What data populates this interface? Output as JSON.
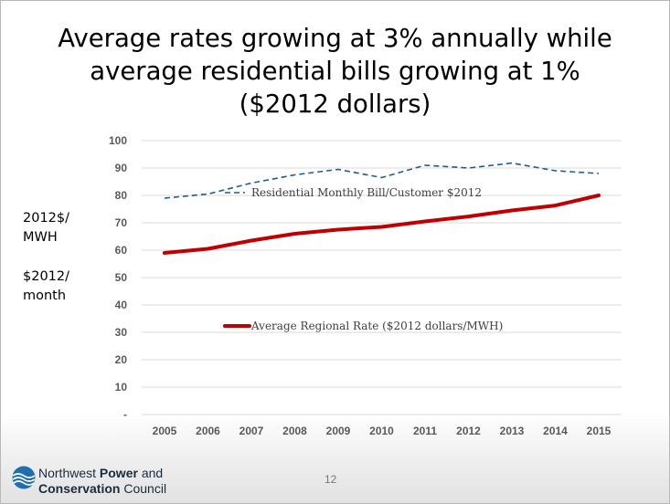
{
  "slide": {
    "title_lines": [
      "Average rates growing at 3% annually while",
      "average residential bills growing at 1%",
      "($2012 dollars)"
    ],
    "left_axis_unit_lines": [
      "2012$/",
      "MWH"
    ],
    "right_axis_unit_lines": [
      "$2012/",
      "month"
    ],
    "page_number": "12"
  },
  "footer": {
    "org_line1_prefix": "Northwest ",
    "org_line1_bold": "Power",
    "org_line1_suffix": " and",
    "org_line2_bold": "Conservation",
    "org_line2_suffix": " Council",
    "logo_icon": "wave-globe-icon"
  },
  "chart_data": {
    "type": "line",
    "x": [
      "2005",
      "2006",
      "2007",
      "2008",
      "2009",
      "2010",
      "2011",
      "2012",
      "2013",
      "2014",
      "2015"
    ],
    "y_ticks": [
      "-",
      "10",
      "20",
      "30",
      "40",
      "50",
      "60",
      "70",
      "80",
      "90",
      "100"
    ],
    "ylim": [
      0,
      100
    ],
    "grid": true,
    "series": [
      {
        "name": "Residential Monthly Bill/Customer $2012",
        "style": "dashed",
        "color": "#1f5c8b",
        "values": [
          79,
          80.5,
          84.5,
          87.5,
          89.5,
          86.5,
          91,
          90,
          91.8,
          89,
          88
        ]
      },
      {
        "name": "Average Regional Rate ($2012 dollars/MWH)",
        "style": "solid",
        "color": "#c00000",
        "values": [
          59,
          60.5,
          63.5,
          66,
          67.5,
          68.5,
          70.5,
          72.3,
          74.5,
          76.3,
          80
        ]
      }
    ]
  }
}
